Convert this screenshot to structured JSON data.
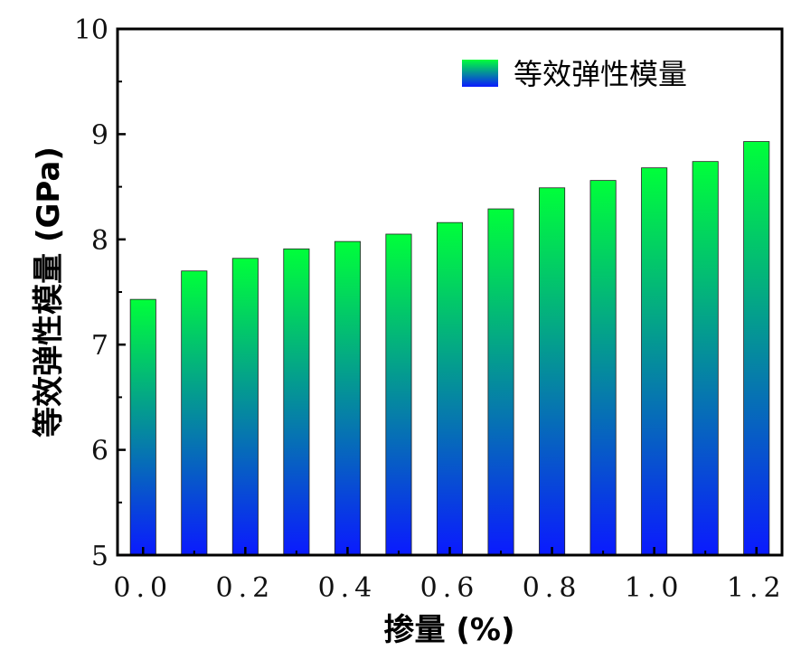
{
  "chart_data": {
    "type": "bar",
    "x": [
      0.0,
      0.1,
      0.2,
      0.3,
      0.4,
      0.5,
      0.6,
      0.7,
      0.8,
      0.9,
      1.0,
      1.1,
      1.2
    ],
    "series": [
      {
        "name": "等效弹性模量",
        "values": [
          7.43,
          7.7,
          7.82,
          7.91,
          7.98,
          8.05,
          8.16,
          8.29,
          8.49,
          8.56,
          8.68,
          8.74,
          8.93
        ]
      }
    ],
    "xlabel": "掺量 (%)",
    "ylabel": "等效弹性模量 (GPa)",
    "xlim": [
      -0.05,
      1.25
    ],
    "ylim": [
      5,
      10
    ],
    "xticks": [
      0.0,
      0.2,
      0.4,
      0.6,
      0.8,
      1.0,
      1.2
    ],
    "xtick_labels": [
      "0.0",
      "0.2",
      "0.4",
      "0.6",
      "0.8",
      "1.0",
      "1.2"
    ],
    "yticks": [
      5,
      6,
      7,
      8,
      9,
      10
    ],
    "ytick_labels": [
      "5",
      "6",
      "7",
      "8",
      "9",
      "10"
    ],
    "bar_gradient": {
      "top": "#00ff3a",
      "bottom": "#0a1aff"
    },
    "legend_position": "top-right",
    "grid": false
  }
}
